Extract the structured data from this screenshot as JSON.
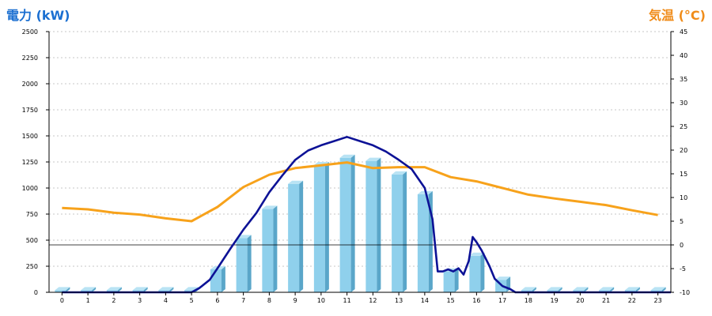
{
  "chart_data": {
    "type": "bar+line",
    "ylabel_left": "電力 (kW)",
    "ylabel_right": "気温 (°C)",
    "categories": [
      "0",
      "1",
      "2",
      "3",
      "4",
      "5",
      "6",
      "7",
      "8",
      "9",
      "10",
      "11",
      "12",
      "13",
      "14",
      "15",
      "16",
      "17",
      "18",
      "19",
      "20",
      "21",
      "22",
      "23"
    ],
    "left_ylim": [
      0,
      2500
    ],
    "left_ticks": [
      0,
      250,
      500,
      750,
      1000,
      1250,
      1500,
      1750,
      2000,
      2250,
      2500
    ],
    "right_ylim": [
      -10,
      45
    ],
    "right_ticks": [
      -10,
      -5,
      0,
      5,
      10,
      15,
      20,
      25,
      30,
      35,
      40,
      45
    ],
    "bars": {
      "name": "電力 (kW)",
      "values": [
        20,
        20,
        20,
        20,
        20,
        20,
        220,
        520,
        800,
        1040,
        1220,
        1290,
        1260,
        1130,
        940,
        200,
        350,
        120,
        20,
        20,
        20,
        20,
        20,
        20
      ],
      "color": "#8fd0ec"
    },
    "power_line": {
      "color": "#0d1296",
      "x": [
        0,
        5,
        5.3,
        5.7,
        6,
        6.5,
        7,
        7.5,
        8,
        8.5,
        9,
        9.5,
        10,
        10.5,
        11,
        11.5,
        12,
        12.5,
        13,
        13.5,
        14,
        14.3,
        14.5,
        14.7,
        14.9,
        15.1,
        15.3,
        15.5,
        15.7,
        15.85,
        16,
        16.2,
        16.5,
        16.7,
        17,
        17.3,
        17.5,
        23.5
      ],
      "y": [
        0,
        0,
        40,
        120,
        230,
        420,
        600,
        760,
        960,
        1120,
        1270,
        1360,
        1410,
        1450,
        1490,
        1450,
        1410,
        1350,
        1270,
        1180,
        1000,
        700,
        200,
        200,
        220,
        200,
        230,
        170,
        300,
        530,
        480,
        400,
        250,
        130,
        60,
        30,
        0,
        0
      ]
    },
    "temperature_line": {
      "color": "#f7a21b",
      "x": [
        0,
        1,
        2,
        3,
        4,
        5,
        6,
        7,
        8,
        9,
        10,
        11,
        12,
        13,
        14,
        15,
        16,
        17,
        18,
        19,
        20,
        21,
        22,
        23
      ],
      "y": [
        7.8,
        7.5,
        6.8,
        6.4,
        5.6,
        5.0,
        8.0,
        12.2,
        14.8,
        16.2,
        16.8,
        17.4,
        16.2,
        16.4,
        16.4,
        14.3,
        13.4,
        12.0,
        10.6,
        9.8,
        9.1,
        8.4,
        7.3,
        6.3
      ]
    }
  }
}
